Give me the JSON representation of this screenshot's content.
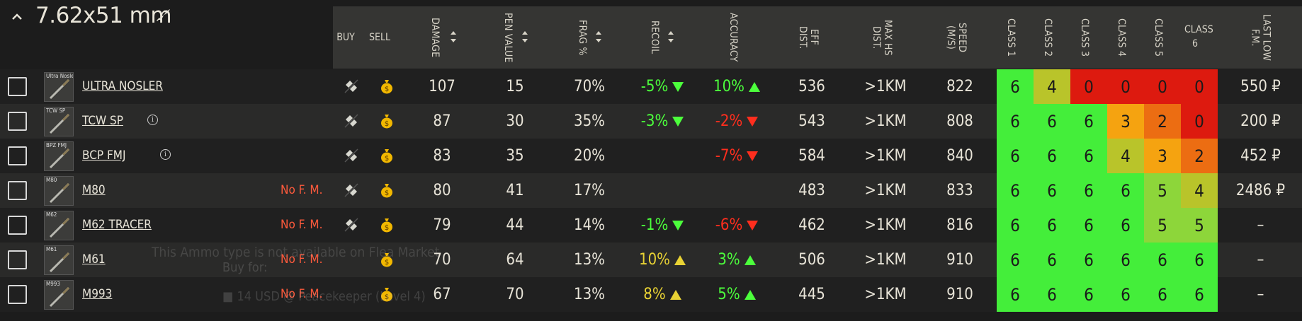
{
  "group": {
    "title": "7.62x51 mm"
  },
  "columns": {
    "buy": "BUY",
    "sell": "SELL",
    "damage": "DAMAGE",
    "pen": "PEN VALUE",
    "frag": "FRAG %",
    "recoil": "RECOIL",
    "accuracy": "ACCURACY",
    "eff": "EFF DIST.",
    "maxhs": "MAX HS DIST.",
    "speed": "SPEED (M/S)",
    "c1": "CLASS 1",
    "c2": "CLASS 2",
    "c3": "CLASS 3",
    "c4": "CLASS 4",
    "c5": "CLASS 5",
    "c6": "CLASS 6",
    "last": "LAST LOW F.M."
  },
  "colors": {
    "c6": "#44ee3a",
    "c5": "#8dd63a",
    "c4": "#b9c42a",
    "c3": "#f5a310",
    "c2": "#ec6d12",
    "c0": "#dd1a0f"
  },
  "rows": [
    {
      "thumb": "Ultra Nosler",
      "name": "ULTRA NOSLER",
      "info": false,
      "nofm": "",
      "damage": "107",
      "pen": "15",
      "frag": "70%",
      "recoil": "-5%",
      "recoil_dir": "down-g",
      "recoil_color": "g",
      "acc": "10%",
      "acc_dir": "up-g",
      "acc_color": "g",
      "eff": "536",
      "maxhs": ">1KM",
      "speed": "822",
      "classes": [
        "6",
        "4",
        "0",
        "0",
        "0",
        "0"
      ],
      "price": "550 ₽"
    },
    {
      "thumb": "TCW SP",
      "name": "TCW SP",
      "info": true,
      "nofm": "",
      "damage": "87",
      "pen": "30",
      "frag": "35%",
      "recoil": "-3%",
      "recoil_dir": "down-g",
      "recoil_color": "g",
      "acc": "-2%",
      "acc_dir": "down-r",
      "acc_color": "r",
      "eff": "543",
      "maxhs": ">1KM",
      "speed": "808",
      "classes": [
        "6",
        "6",
        "6",
        "3",
        "2",
        "0"
      ],
      "price": "200 ₽"
    },
    {
      "thumb": "BPZ FMJ",
      "name": "BCP FMJ",
      "info": true,
      "nofm": "",
      "damage": "83",
      "pen": "35",
      "frag": "20%",
      "recoil": "",
      "recoil_dir": "",
      "recoil_color": "",
      "acc": "-7%",
      "acc_dir": "down-r",
      "acc_color": "r",
      "eff": "584",
      "maxhs": ">1KM",
      "speed": "840",
      "classes": [
        "6",
        "6",
        "6",
        "4",
        "3",
        "2"
      ],
      "price": "452 ₽"
    },
    {
      "thumb": "M80",
      "name": "M80",
      "info": false,
      "nofm": "No F. M.",
      "damage": "80",
      "pen": "41",
      "frag": "17%",
      "recoil": "",
      "recoil_dir": "",
      "recoil_color": "",
      "acc": "",
      "acc_dir": "",
      "acc_color": "",
      "eff": "483",
      "maxhs": ">1KM",
      "speed": "833",
      "classes": [
        "6",
        "6",
        "6",
        "6",
        "5",
        "4"
      ],
      "price": "2486 ₽"
    },
    {
      "thumb": "M62",
      "name": "M62 TRACER",
      "info": false,
      "nofm": "No F. M.",
      "damage": "79",
      "pen": "44",
      "frag": "14%",
      "recoil": "-1%",
      "recoil_dir": "down-g",
      "recoil_color": "g",
      "acc": "-6%",
      "acc_dir": "down-r",
      "acc_color": "r",
      "eff": "462",
      "maxhs": ">1KM",
      "speed": "816",
      "classes": [
        "6",
        "6",
        "6",
        "6",
        "5",
        "5"
      ],
      "price": "–"
    },
    {
      "thumb": "M61",
      "name": "M61",
      "info": false,
      "nofm": "No F. M.",
      "damage": "70",
      "pen": "64",
      "frag": "13%",
      "recoil": "10%",
      "recoil_dir": "up-y",
      "recoil_color": "y",
      "acc": "3%",
      "acc_dir": "up-g",
      "acc_color": "g",
      "eff": "506",
      "maxhs": ">1KM",
      "speed": "910",
      "classes": [
        "6",
        "6",
        "6",
        "6",
        "6",
        "6"
      ],
      "price": "–"
    },
    {
      "thumb": "M993",
      "name": "M993",
      "info": false,
      "nofm": "No F. M.",
      "damage": "67",
      "pen": "70",
      "frag": "13%",
      "recoil": "8%",
      "recoil_dir": "up-y",
      "recoil_color": "y",
      "acc": "5%",
      "acc_dir": "up-g",
      "acc_color": "g",
      "eff": "445",
      "maxhs": ">1KM",
      "speed": "910",
      "classes": [
        "6",
        "6",
        "6",
        "6",
        "6",
        "6"
      ],
      "price": "–"
    }
  ],
  "tooltip": {
    "line1": "This Ammo type is not available on Flea Market",
    "line2": "Buy for:",
    "line3": "■ 14 USD @ Peacekeeper (Level 4)"
  }
}
